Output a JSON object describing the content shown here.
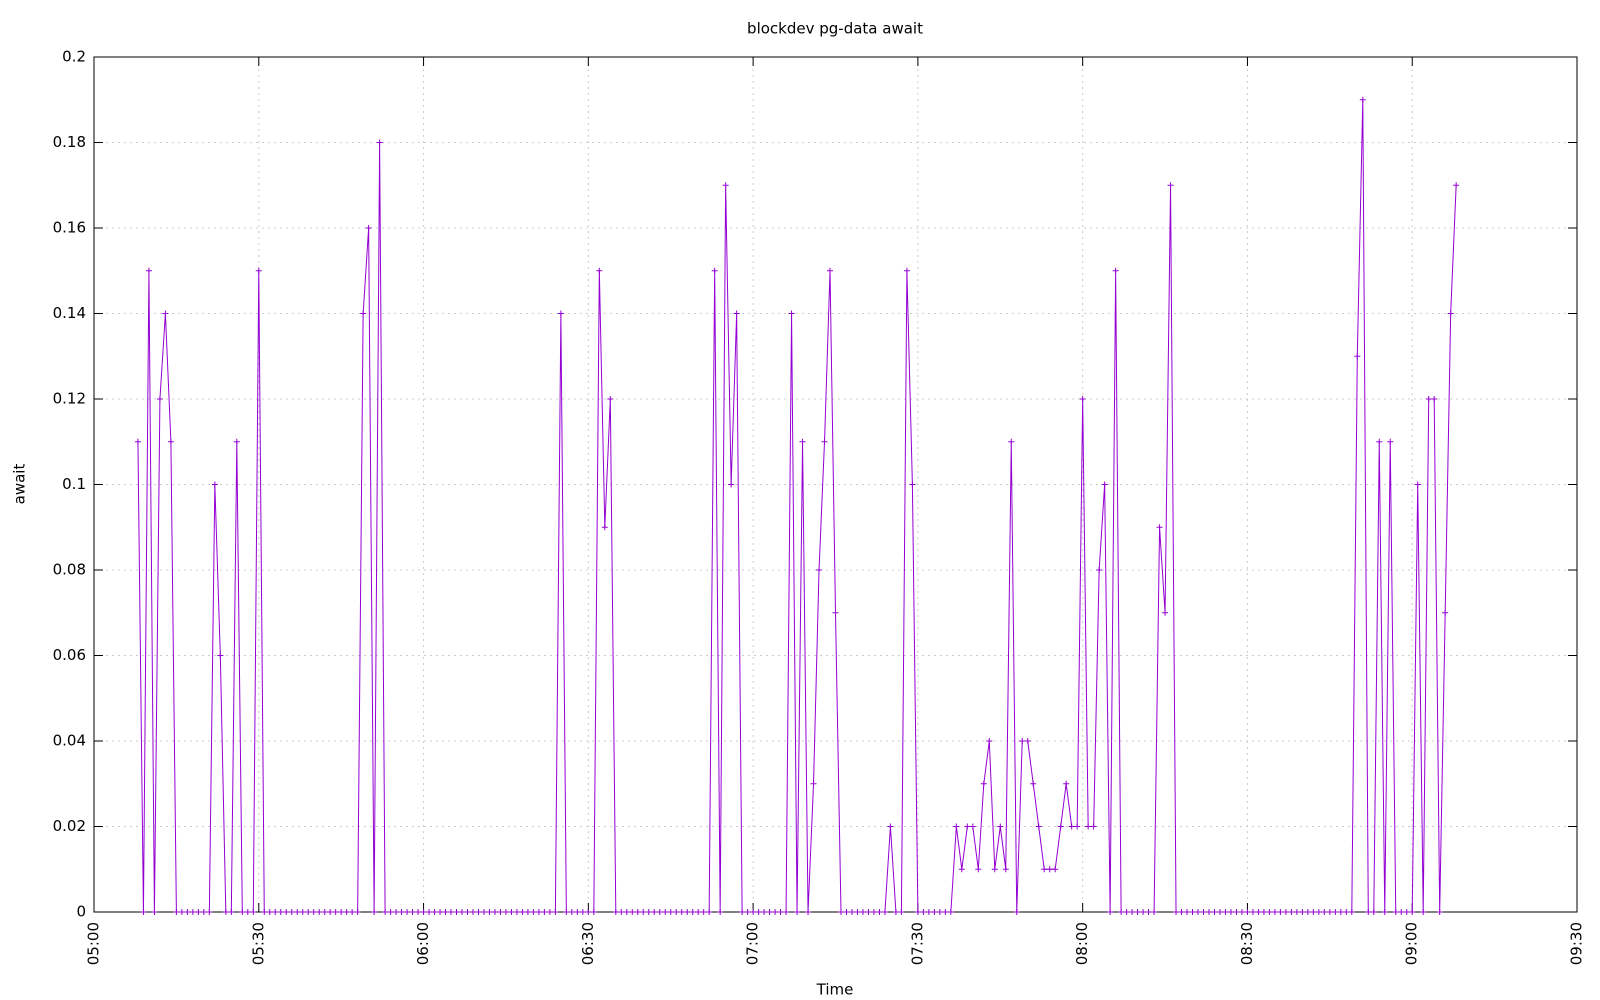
{
  "chart_data": {
    "type": "line",
    "title": "blockdev pg-data await",
    "xlabel": "Time",
    "ylabel": "await",
    "color": "#9400d3",
    "grid": true,
    "xlim": [
      "05:00",
      "09:30"
    ],
    "xticks": [
      "05:00",
      "05:30",
      "06:00",
      "06:30",
      "07:00",
      "07:30",
      "08:00",
      "08:30",
      "09:00",
      "09:30"
    ],
    "ylim": [
      0,
      0.2
    ],
    "yticks": [
      0,
      0.02,
      0.04,
      0.06,
      0.08,
      0.1,
      0.12,
      0.14,
      0.16,
      0.18,
      0.2
    ],
    "x": [
      "05:08",
      "05:09",
      "05:10",
      "05:11",
      "05:12",
      "05:13",
      "05:14",
      "05:15",
      "05:16",
      "05:17",
      "05:18",
      "05:19",
      "05:20",
      "05:21",
      "05:22",
      "05:23",
      "05:24",
      "05:25",
      "05:26",
      "05:27",
      "05:28",
      "05:29",
      "05:30",
      "05:31",
      "05:32",
      "05:33",
      "05:34",
      "05:35",
      "05:36",
      "05:37",
      "05:38",
      "05:39",
      "05:40",
      "05:41",
      "05:42",
      "05:43",
      "05:44",
      "05:45",
      "05:46",
      "05:47",
      "05:48",
      "05:49",
      "05:50",
      "05:51",
      "05:52",
      "05:53",
      "05:54",
      "05:55",
      "05:56",
      "05:57",
      "05:58",
      "05:59",
      "06:00",
      "06:01",
      "06:02",
      "06:03",
      "06:04",
      "06:05",
      "06:06",
      "06:07",
      "06:08",
      "06:09",
      "06:10",
      "06:11",
      "06:12",
      "06:13",
      "06:14",
      "06:15",
      "06:16",
      "06:17",
      "06:18",
      "06:19",
      "06:20",
      "06:21",
      "06:22",
      "06:23",
      "06:24",
      "06:25",
      "06:26",
      "06:27",
      "06:28",
      "06:29",
      "06:30",
      "06:31",
      "06:32",
      "06:33",
      "06:34",
      "06:35",
      "06:36",
      "06:37",
      "06:38",
      "06:39",
      "06:40",
      "06:41",
      "06:42",
      "06:43",
      "06:44",
      "06:45",
      "06:46",
      "06:47",
      "06:48",
      "06:49",
      "06:50",
      "06:51",
      "06:52",
      "06:53",
      "06:54",
      "06:55",
      "06:56",
      "06:57",
      "06:58",
      "06:59",
      "07:00",
      "07:01",
      "07:02",
      "07:03",
      "07:04",
      "07:05",
      "07:06",
      "07:07",
      "07:08",
      "07:09",
      "07:10",
      "07:11",
      "07:12",
      "07:13",
      "07:14",
      "07:15",
      "07:16",
      "07:17",
      "07:18",
      "07:19",
      "07:20",
      "07:21",
      "07:22",
      "07:23",
      "07:24",
      "07:25",
      "07:26",
      "07:27",
      "07:28",
      "07:29",
      "07:30",
      "07:31",
      "07:32",
      "07:33",
      "07:34",
      "07:35",
      "07:36",
      "07:37",
      "07:38",
      "07:39",
      "07:40",
      "07:41",
      "07:42",
      "07:43",
      "07:44",
      "07:45",
      "07:46",
      "07:47",
      "07:48",
      "07:49",
      "07:50",
      "07:51",
      "07:52",
      "07:53",
      "07:54",
      "07:55",
      "07:56",
      "07:57",
      "07:58",
      "07:59",
      "08:00",
      "08:01",
      "08:02",
      "08:03",
      "08:04",
      "08:05",
      "08:06",
      "08:07",
      "08:08",
      "08:09",
      "08:10",
      "08:11",
      "08:12",
      "08:13",
      "08:14",
      "08:15",
      "08:16",
      "08:17",
      "08:18",
      "08:19",
      "08:20",
      "08:21",
      "08:22",
      "08:23",
      "08:24",
      "08:25",
      "08:26",
      "08:27",
      "08:28",
      "08:29",
      "08:30",
      "08:31",
      "08:32",
      "08:33",
      "08:34",
      "08:35",
      "08:36",
      "08:37",
      "08:38",
      "08:39",
      "08:40",
      "08:41",
      "08:42",
      "08:43",
      "08:44",
      "08:45",
      "08:46",
      "08:47",
      "08:48",
      "08:49",
      "08:50",
      "08:51",
      "08:52",
      "08:53",
      "08:54",
      "08:55",
      "08:56",
      "08:57",
      "08:58",
      "08:59",
      "09:00",
      "09:01",
      "09:02",
      "09:03",
      "09:04",
      "09:05",
      "09:06",
      "09:07",
      "09:08"
    ],
    "values": [
      0.11,
      0,
      0.15,
      0,
      0.12,
      0.14,
      0.11,
      0,
      0,
      0,
      0,
      0,
      0,
      0,
      0.1,
      0.06,
      0,
      0,
      0.11,
      0,
      0,
      0,
      0.15,
      0,
      0,
      0,
      0,
      0,
      0,
      0,
      0,
      0,
      0,
      0,
      0,
      0,
      0,
      0,
      0,
      0,
      0,
      0.14,
      0.16,
      0,
      0.18,
      0,
      0,
      0,
      0,
      0,
      0,
      0,
      0,
      0,
      0,
      0,
      0,
      0,
      0,
      0,
      0,
      0,
      0,
      0,
      0,
      0,
      0,
      0,
      0,
      0,
      0,
      0,
      0,
      0,
      0,
      0,
      0,
      0.14,
      0,
      0,
      0,
      0,
      0,
      0,
      0.15,
      0.09,
      0.12,
      0,
      0,
      0,
      0,
      0,
      0,
      0,
      0,
      0,
      0,
      0,
      0,
      0,
      0,
      0,
      0,
      0,
      0,
      0.15,
      0,
      0.17,
      0.1,
      0.14,
      0,
      0,
      0,
      0,
      0,
      0,
      0,
      0,
      0,
      0.14,
      0,
      0.11,
      0,
      0.03,
      0.08,
      0.11,
      0.15,
      0.07,
      0,
      0,
      0,
      0,
      0,
      0,
      0,
      0,
      0,
      0.02,
      0,
      0,
      0.15,
      0.1,
      0,
      0,
      0,
      0,
      0,
      0,
      0,
      0.02,
      0.01,
      0.02,
      0.02,
      0.01,
      0.03,
      0.04,
      0.01,
      0.02,
      0.01,
      0.11,
      0,
      0.04,
      0.04,
      0.03,
      0.02,
      0.01,
      0.01,
      0.01,
      0.02,
      0.03,
      0.02,
      0.02,
      0.12,
      0.02,
      0.02,
      0.08,
      0.1,
      0,
      0.15,
      0,
      0,
      0,
      0,
      0,
      0,
      0,
      0.09,
      0.07,
      0.17,
      0,
      0,
      0,
      0,
      0,
      0,
      0,
      0,
      0,
      0,
      0,
      0,
      0,
      0,
      0,
      0,
      0,
      0,
      0,
      0,
      0,
      0,
      0,
      0,
      0,
      0,
      0,
      0,
      0,
      0,
      0,
      0,
      0,
      0.13,
      0.19,
      0,
      0,
      0.11,
      0,
      0.11,
      0,
      0,
      0,
      0,
      0.1,
      0,
      0.12,
      0.12,
      0,
      0.07,
      0.14,
      0.17
    ]
  }
}
